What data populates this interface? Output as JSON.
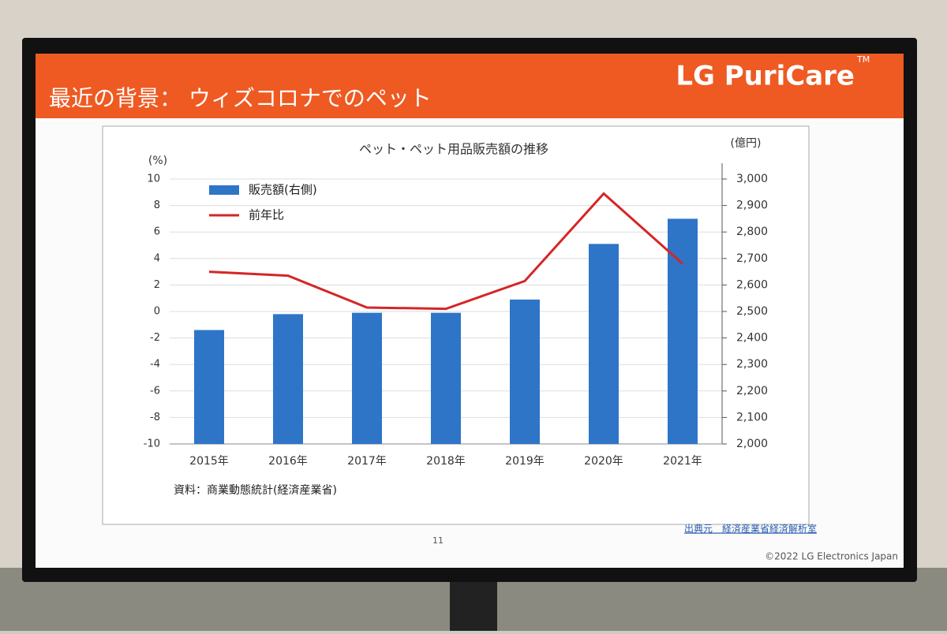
{
  "header": {
    "title": "最近の背景： ウィズコロナでのペット",
    "logo": "LG PuriCare",
    "logo_mark": "TM"
  },
  "chart_data": {
    "type": "bar_line",
    "title": "ペット・ペット用品販売額の推移",
    "ylabel": "(%)",
    "y2label": "(億円)",
    "categories": [
      "2015年",
      "2016年",
      "2017年",
      "2018年",
      "2019年",
      "2020年",
      "2021年"
    ],
    "series": [
      {
        "name": "販売額(右側)",
        "kind": "bar",
        "axis": "y2",
        "color": "#2e75c8",
        "values": [
          2430,
          2490,
          2495,
          2495,
          2545,
          2755,
          2850
        ]
      },
      {
        "name": "前年比",
        "kind": "line",
        "axis": "y",
        "color": "#d42626",
        "values": [
          3.0,
          2.7,
          0.3,
          0.2,
          2.3,
          8.9,
          3.6
        ]
      }
    ],
    "ylim": [
      -10,
      10
    ],
    "yticks": [
      -10,
      -8,
      -6,
      -4,
      -2,
      0,
      2,
      4,
      6,
      8,
      10
    ],
    "y2lim": [
      2000,
      3000
    ],
    "y2ticks": [
      {
        "value": 2000,
        "label": "2,000"
      },
      {
        "value": 2100,
        "label": "2,100"
      },
      {
        "value": 2200,
        "label": "2,200"
      },
      {
        "value": 2300,
        "label": "2,300"
      },
      {
        "value": 2400,
        "label": "2,400"
      },
      {
        "value": 2500,
        "label": "2,500"
      },
      {
        "value": 2600,
        "label": "2,600"
      },
      {
        "value": 2700,
        "label": "2,700"
      },
      {
        "value": 2800,
        "label": "2,800"
      },
      {
        "value": 2900,
        "label": "2,900"
      },
      {
        "value": 3000,
        "label": "3,000"
      }
    ],
    "grid": true,
    "legend": "upper-left",
    "source": "資料：商業動態統計(経済産業省)"
  },
  "footer": {
    "link": "出典元　経済産業省経済解析室",
    "page": "11",
    "copyright": "©2022 LG Electronics Japan"
  }
}
